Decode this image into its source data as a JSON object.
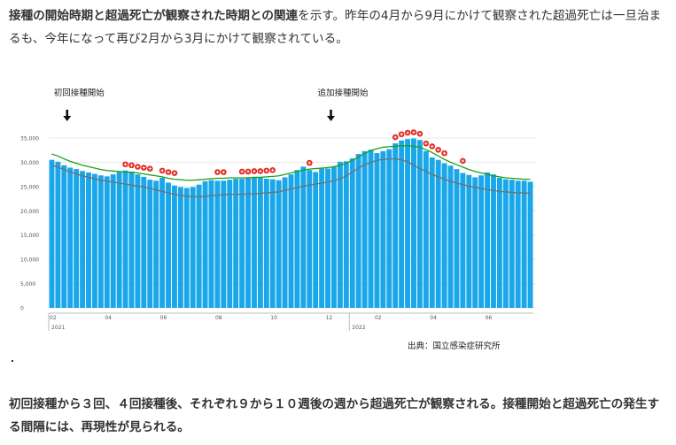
{
  "intro": {
    "bold_text": "接種の開始時期と超過死亡が観察された時期との関連",
    "normal_text": "を示す。昨年の4月から9月にかけて観察された超過死亡は一旦治まるも、今年になって再び2月から3月にかけて観察されている。"
  },
  "conclusion": "初回接種から３回、４回接種後、それぞれ９から１０週後の週から超過死亡が観察される。接種開始と超過死亡の発生する間隔には、再現性が見られる。",
  "colors": {
    "bar": "#1aa7ea",
    "upper_line": "#17a317",
    "lower_line": "#707070",
    "marker": "#e0281e",
    "axis_text": "#555555",
    "grid": "#e8e8e8"
  },
  "chart_data": {
    "type": "bar",
    "y_ticks": [
      "35,000",
      "30,000",
      "25,000",
      "20,000",
      "15,000",
      "10,000",
      "5,000",
      "0"
    ],
    "ylim": [
      0,
      35000
    ],
    "x_tick_labels": [
      {
        "week": 0,
        "label": "02"
      },
      {
        "week": 9,
        "label": "04"
      },
      {
        "week": 18,
        "label": "06"
      },
      {
        "week": 27,
        "label": "08"
      },
      {
        "week": 36,
        "label": "10"
      },
      {
        "week": 45,
        "label": "12"
      },
      {
        "week": 53,
        "label": "02"
      },
      {
        "week": 62,
        "label": "04"
      },
      {
        "week": 71,
        "label": "06"
      }
    ],
    "year_labels": [
      {
        "week": 0,
        "label": "2021"
      },
      {
        "week": 49,
        "label": "2022"
      }
    ],
    "values": [
      30500,
      30100,
      29400,
      28900,
      28600,
      28200,
      27900,
      27600,
      27300,
      27100,
      27500,
      28000,
      28300,
      28100,
      27500,
      27000,
      26400,
      26200,
      26800,
      25800,
      25200,
      24900,
      24700,
      24900,
      25400,
      26100,
      26300,
      26200,
      26200,
      26400,
      26600,
      26600,
      26800,
      26900,
      26900,
      26600,
      26500,
      26300,
      26900,
      27500,
      28400,
      29100,
      28400,
      28000,
      28700,
      28700,
      29200,
      30100,
      30200,
      30800,
      31700,
      32300,
      32600,
      31900,
      32300,
      32700,
      33900,
      34500,
      34800,
      34900,
      34600,
      32300,
      31000,
      30500,
      29800,
      29300,
      28600,
      27800,
      27400,
      26900,
      27300,
      27900,
      27500,
      26800,
      26500,
      26400,
      26200,
      26200,
      26000
    ],
    "upper_line": [
      31700,
      31300,
      30700,
      30200,
      29800,
      29400,
      29100,
      28800,
      28500,
      28300,
      28200,
      28100,
      28000,
      27900,
      27800,
      27600,
      27400,
      27200,
      27000,
      26700,
      26500,
      26400,
      26300,
      26300,
      26400,
      26500,
      26600,
      26700,
      26700,
      26800,
      26800,
      26800,
      26800,
      26900,
      26900,
      27000,
      27100,
      27200,
      27500,
      27800,
      28100,
      28400,
      28600,
      28700,
      28800,
      28900,
      29100,
      29400,
      29800,
      30400,
      31100,
      31800,
      32400,
      32800,
      33100,
      33200,
      33300,
      33400,
      33400,
      33300,
      33100,
      32600,
      32000,
      31300,
      30600,
      30000,
      29500,
      29000,
      28500,
      28100,
      27800,
      27500,
      27200,
      27000,
      26800,
      26700,
      26600,
      26500,
      26500
    ],
    "lower_line": [
      29400,
      29000,
      28500,
      28000,
      27600,
      27200,
      26900,
      26600,
      26300,
      26100,
      25900,
      25700,
      25500,
      25300,
      25100,
      24900,
      24600,
      24300,
      24000,
      23700,
      23400,
      23200,
      23000,
      22900,
      22900,
      23000,
      23100,
      23200,
      23300,
      23400,
      23400,
      23400,
      23500,
      23500,
      23600,
      23700,
      23800,
      23900,
      24200,
      24500,
      24800,
      25100,
      25300,
      25500,
      25700,
      25900,
      26200,
      26600,
      27200,
      28000,
      28800,
      29500,
      30000,
      30400,
      30600,
      30700,
      30700,
      30500,
      30100,
      29400,
      28700,
      28100,
      27500,
      27000,
      26500,
      26100,
      25700,
      25400,
      25100,
      24800,
      24600,
      24400,
      24200,
      24000,
      23900,
      23800,
      23700,
      23700,
      23600
    ],
    "excess_marker_weeks": [
      12,
      13,
      14,
      15,
      16,
      18,
      19,
      20,
      27,
      28,
      31,
      32,
      33,
      34,
      35,
      36,
      42,
      56,
      57,
      58,
      59,
      60,
      61,
      62,
      63,
      64,
      67
    ],
    "annotations": [
      {
        "week": 3,
        "label": "初回接種開始"
      },
      {
        "week": 46,
        "label": "追加接種開始"
      }
    ],
    "source": "出典：国立感染症研究所"
  }
}
